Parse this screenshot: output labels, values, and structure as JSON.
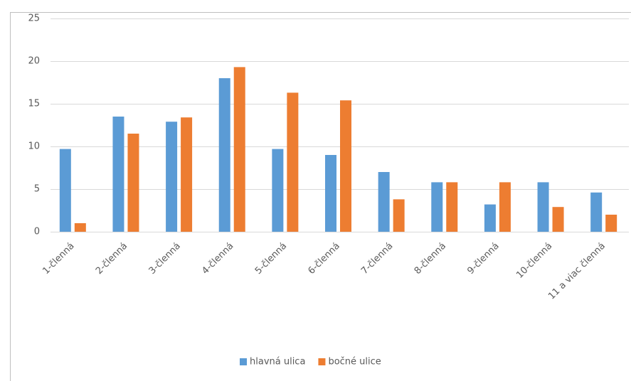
{
  "chart_data": {
    "type": "bar",
    "categories": [
      "1-členná",
      "2-členná",
      "3-členná",
      "4-členná",
      "5-členná",
      "6-členná",
      "7-členná",
      "8-členná",
      "9-členná",
      "10-členná",
      "11 a viac členná"
    ],
    "series": [
      {
        "name": "hlavná ulica",
        "color": "#5b9bd5",
        "values": [
          9.7,
          13.5,
          12.9,
          18.0,
          9.7,
          9.0,
          7.0,
          5.8,
          3.2,
          5.8,
          4.6
        ]
      },
      {
        "name": "bočné ulice",
        "color": "#ed7d31",
        "values": [
          1.0,
          11.5,
          13.4,
          19.3,
          16.3,
          15.4,
          3.8,
          5.8,
          5.8,
          2.9,
          2.0
        ]
      }
    ],
    "ylim": [
      0,
      25
    ],
    "yticks": [
      0,
      5,
      10,
      15,
      20,
      25
    ],
    "grid": true,
    "legend": "bottom"
  }
}
